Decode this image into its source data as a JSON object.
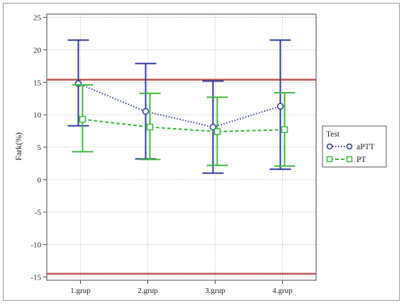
{
  "chart_data": {
    "type": "line",
    "title": "",
    "xlabel": "",
    "ylabel": "Fark(%)",
    "categories": [
      "1.grup",
      "2.grup",
      "3.grup",
      "4.grup"
    ],
    "ylim": [
      -15.5,
      25.5
    ],
    "yticks": [
      -15,
      -10,
      -5,
      0,
      5,
      10,
      15,
      20,
      25
    ],
    "grid": true,
    "legend": {
      "title": "Test",
      "position": "right"
    },
    "reference_lines": [
      {
        "y": 15.4,
        "color": "#c0504d"
      },
      {
        "y": -14.5,
        "color": "#c0504d"
      }
    ],
    "series": [
      {
        "name": "aPTT",
        "marker": "circle",
        "color": "#2e3aa0",
        "values": [
          14.8,
          10.5,
          8.1,
          11.3
        ],
        "upper": [
          21.5,
          17.9,
          15.2,
          21.5
        ],
        "lower": [
          8.3,
          3.2,
          1.0,
          1.6
        ]
      },
      {
        "name": "PT",
        "marker": "square",
        "color": "#3cba3c",
        "values": [
          9.3,
          8.1,
          7.4,
          7.7
        ],
        "upper": [
          14.6,
          13.3,
          12.7,
          13.4
        ],
        "lower": [
          4.3,
          3.1,
          2.2,
          2.1
        ]
      }
    ]
  }
}
